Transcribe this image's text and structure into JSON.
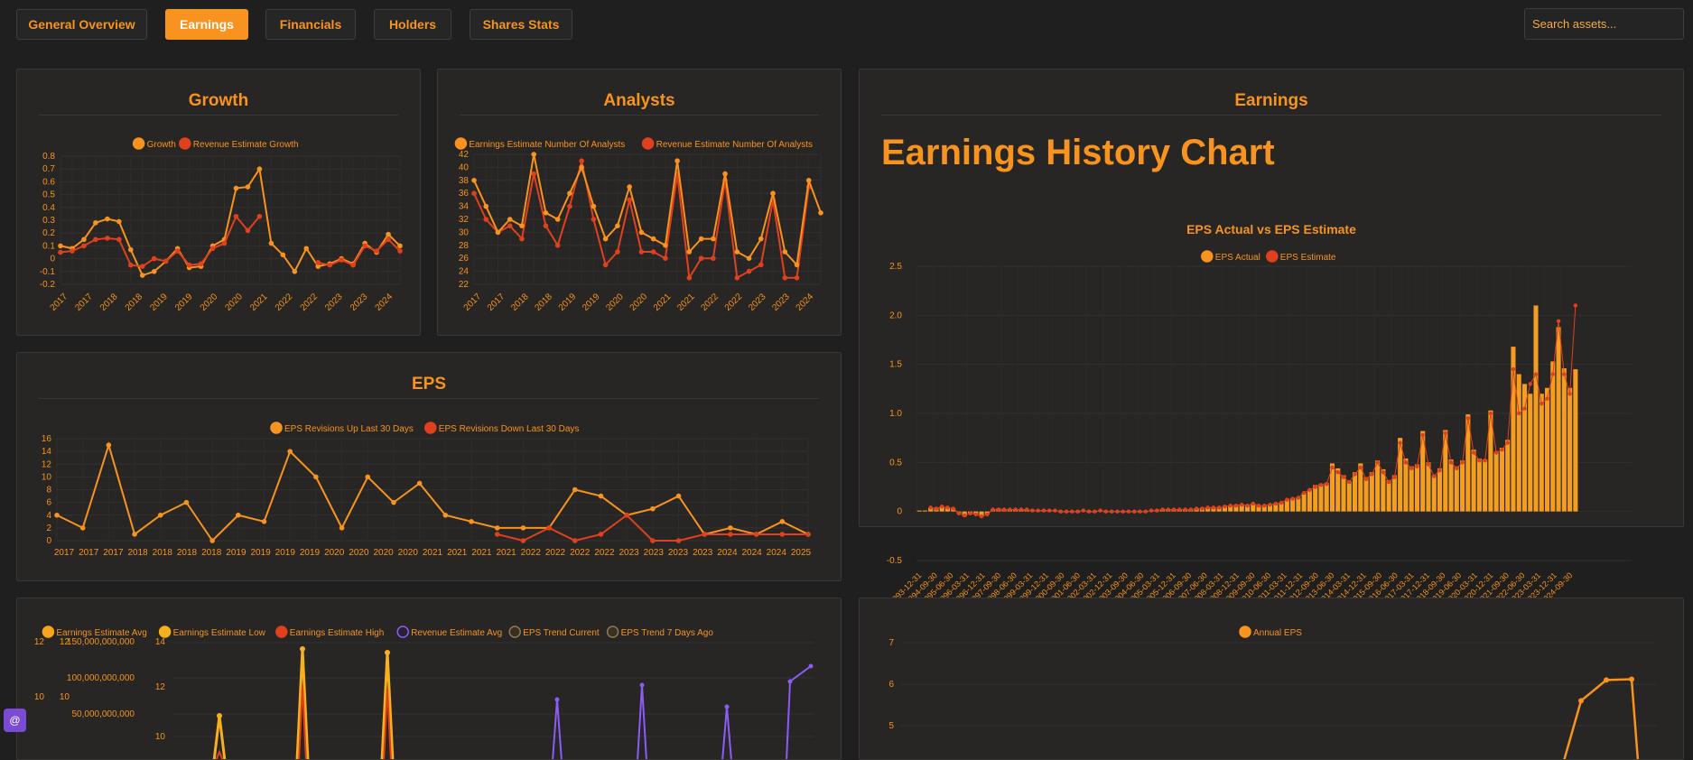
{
  "nav": {
    "tabs": [
      {
        "label": "General Overview",
        "active": false
      },
      {
        "label": "Earnings",
        "active": true
      },
      {
        "label": "Financials",
        "active": false
      },
      {
        "label": "Holders",
        "active": false
      },
      {
        "label": "Shares Stats",
        "active": false
      }
    ],
    "search_placeholder": "Search assets..."
  },
  "colors": {
    "orange": "#f7931e",
    "red": "#e0401e",
    "purple": "#8b5cf6",
    "trend": "#6b5a3a"
  },
  "growth": {
    "title": "Growth",
    "chart_data": {
      "type": "line",
      "legend": [
        "Growth",
        "Revenue Estimate Growth"
      ],
      "x_labels": [
        "2017",
        "2017",
        "2018",
        "2018",
        "2019",
        "2019",
        "2020",
        "2020",
        "2021",
        "2022",
        "2022",
        "2023",
        "2023",
        "2024"
      ],
      "y_ticks": [
        "0.8",
        "0.7",
        "0.6",
        "0.5",
        "0.4",
        "0.3",
        "0.2",
        "0.1",
        "0",
        "-0.1",
        "-0.2"
      ],
      "ylim": [
        -0.2,
        0.8
      ],
      "series": [
        {
          "name": "Growth",
          "values": [
            0.1,
            0.08,
            0.15,
            0.28,
            0.31,
            0.29,
            0.07,
            -0.13,
            -0.1,
            -0.02,
            0.08,
            -0.07,
            -0.06,
            0.1,
            0.15,
            0.55,
            0.56,
            0.7,
            0.12,
            0.03,
            -0.1,
            0.08,
            -0.06,
            -0.04,
            0.0,
            -0.04,
            0.12,
            0.05,
            0.19,
            0.1
          ]
        },
        {
          "name": "Revenue Estimate Growth",
          "values": [
            0.05,
            0.06,
            0.1,
            0.15,
            0.16,
            0.15,
            -0.05,
            -0.06,
            0.0,
            -0.02,
            0.06,
            -0.05,
            -0.04,
            0.08,
            0.12,
            0.33,
            0.22,
            0.33,
            null,
            null,
            null,
            null,
            -0.03,
            -0.05,
            -0.01,
            -0.05,
            0.1,
            0.06,
            0.15,
            0.06
          ]
        }
      ]
    }
  },
  "analysts": {
    "title": "Analysts",
    "chart_data": {
      "type": "line",
      "legend": [
        "Earnings Estimate Number Of Analysts",
        "Revenue Estimate Number Of Analysts"
      ],
      "x_labels": [
        "2017",
        "2017",
        "2018",
        "2018",
        "2019",
        "2019",
        "2020",
        "2020",
        "2021",
        "2021",
        "2022",
        "2022",
        "2023",
        "2023",
        "2024"
      ],
      "y_ticks": [
        "42",
        "40",
        "38",
        "36",
        "34",
        "32",
        "30",
        "28",
        "26",
        "24",
        "22"
      ],
      "ylim": [
        22,
        42
      ],
      "series": [
        {
          "name": "Earnings Estimate Number Of Analysts",
          "values": [
            38,
            34,
            30,
            32,
            31,
            42,
            33,
            32,
            36,
            40,
            34,
            29,
            31,
            37,
            30,
            29,
            28,
            41,
            27,
            29,
            29,
            39,
            27,
            26,
            29,
            36,
            27,
            25,
            38,
            33
          ]
        },
        {
          "name": "Revenue Estimate Number Of Analysts",
          "values": [
            36,
            32,
            30,
            31,
            29,
            39,
            31,
            28,
            34,
            41,
            32,
            25,
            27,
            35,
            27,
            27,
            26,
            39,
            23,
            26,
            26,
            38,
            23,
            24,
            25,
            35,
            23,
            23,
            37,
            null
          ]
        }
      ]
    }
  },
  "eps": {
    "title": "EPS",
    "chart_data": {
      "type": "line",
      "legend": [
        "EPS Revisions Up Last 30 Days",
        "EPS Revisions Down Last 30 Days"
      ],
      "x_labels": [
        "2017",
        "2017",
        "2017",
        "2018",
        "2018",
        "2018",
        "2018",
        "2019",
        "2019",
        "2019",
        "2019",
        "2020",
        "2020",
        "2020",
        "2020",
        "2021",
        "2021",
        "2021",
        "2021",
        "2022",
        "2022",
        "2022",
        "2022",
        "2023",
        "2023",
        "2023",
        "2023",
        "2024",
        "2024",
        "2024",
        "2025"
      ],
      "y_ticks": [
        "16",
        "14",
        "12",
        "10",
        "8",
        "6",
        "4",
        "2",
        "0"
      ],
      "ylim": [
        0,
        16
      ],
      "series": [
        {
          "name": "EPS Revisions Up Last 30 Days",
          "values": [
            4,
            2,
            15,
            1,
            4,
            6,
            0,
            4,
            3,
            14,
            10,
            2,
            10,
            6,
            9,
            4,
            3,
            2,
            2,
            2,
            8,
            7,
            4,
            5,
            7,
            1,
            2,
            1,
            3,
            1
          ]
        },
        {
          "name": "EPS Revisions Down Last 30 Days",
          "values": [
            null,
            null,
            null,
            null,
            null,
            null,
            null,
            null,
            null,
            null,
            null,
            null,
            null,
            null,
            null,
            null,
            null,
            1,
            0,
            2,
            0,
            1,
            4,
            0,
            0,
            1,
            1,
            1,
            1,
            1
          ]
        }
      ]
    }
  },
  "earnings": {
    "title": "Earnings",
    "heading": "Earnings History Chart",
    "chart_data": {
      "type": "bar",
      "title": "EPS Actual vs EPS Estimate",
      "legend": [
        "EPS Actual",
        "EPS Estimate"
      ],
      "y_ticks": [
        "2.5",
        "2.0",
        "1.5",
        "1.0",
        "0.5",
        "0",
        "-0.5"
      ],
      "ylim": [
        -0.5,
        2.5
      ],
      "x_labels": [
        "1993-12-31",
        "1994-09-30",
        "1995-06-30",
        "1996-03-31",
        "1996-12-31",
        "1997-09-30",
        "1998-06-30",
        "1999-03-31",
        "1999-12-31",
        "2000-09-30",
        "2001-06-30",
        "2002-03-31",
        "2002-12-31",
        "2003-09-30",
        "2004-06-30",
        "2005-03-31",
        "2005-12-31",
        "2006-09-30",
        "2007-06-30",
        "2008-03-31",
        "2008-12-31",
        "2009-09-30",
        "2010-06-30",
        "2011-03-31",
        "2011-12-31",
        "2012-09-30",
        "2013-06-30",
        "2014-03-31",
        "2014-12-31",
        "2015-09-30",
        "2016-06-30",
        "2017-03-31",
        "2017-12-31",
        "2018-09-30",
        "2019-06-30",
        "2020-03-31",
        "2020-12-31",
        "2021-09-30",
        "2022-06-30",
        "2023-03-31",
        "2023-12-31",
        "2024-09-30"
      ],
      "actual": [
        0.01,
        0.01,
        0.04,
        0.04,
        0.05,
        0.04,
        0.03,
        -0.02,
        -0.05,
        -0.02,
        -0.03,
        -0.05,
        -0.03,
        0.02,
        0.03,
        0.02,
        0.02,
        0.02,
        0.02,
        0.02,
        0.01,
        0.01,
        0.01,
        0.01,
        0.01,
        0,
        0,
        0,
        0,
        0.01,
        0,
        0,
        0.01,
        0,
        0,
        0,
        0,
        0,
        0,
        0,
        0,
        0.01,
        0.01,
        0.02,
        0.02,
        0.02,
        0.02,
        0.02,
        0.02,
        0.03,
        0.03,
        0.04,
        0.04,
        0.04,
        0.05,
        0.06,
        0.06,
        0.07,
        0.06,
        0.08,
        0.06,
        0.06,
        0.07,
        0.08,
        0.09,
        0.12,
        0.13,
        0.14,
        0.19,
        0.22,
        0.27,
        0.28,
        0.29,
        0.49,
        0.44,
        0.37,
        0.31,
        0.4,
        0.49,
        0.35,
        0.4,
        0.52,
        0.43,
        0.32,
        0.37,
        0.75,
        0.54,
        0.46,
        0.48,
        0.82,
        0.5,
        0.37,
        0.44,
        0.83,
        0.53,
        0.46,
        0.52,
        0.99,
        0.63,
        0.54,
        0.53,
        1.03,
        0.61,
        0.65,
        0.73,
        1.68,
        1.4,
        1.3,
        1.2,
        2.1,
        1.2,
        1.26,
        1.53,
        1.88,
        1.46,
        1.26,
        1.45
      ],
      "estimate": [
        null,
        null,
        0.04,
        0.03,
        0.05,
        0.04,
        0.03,
        -0.02,
        -0.04,
        -0.02,
        -0.03,
        -0.05,
        -0.03,
        0.02,
        0.02,
        0.02,
        0.02,
        0.02,
        0.02,
        0.02,
        0.01,
        0.01,
        0.01,
        0.01,
        0.01,
        0,
        0,
        0,
        0,
        0.01,
        0,
        0,
        0.01,
        0,
        0,
        0,
        0,
        0,
        0,
        0,
        0,
        0.01,
        0.01,
        0.02,
        0.02,
        0.02,
        0.02,
        0.02,
        0.02,
        0.03,
        0.03,
        0.04,
        0.04,
        0.04,
        0.05,
        0.06,
        0.06,
        0.07,
        0.06,
        0.08,
        0.06,
        0.06,
        0.07,
        0.08,
        0.09,
        0.12,
        0.13,
        0.14,
        0.19,
        0.22,
        0.25,
        0.27,
        0.28,
        0.45,
        0.4,
        0.35,
        0.3,
        0.38,
        0.45,
        0.33,
        0.38,
        0.5,
        0.4,
        0.3,
        0.35,
        0.7,
        0.5,
        0.44,
        0.46,
        0.78,
        0.48,
        0.36,
        0.42,
        0.8,
        0.5,
        0.44,
        0.5,
        0.95,
        0.6,
        0.52,
        0.52,
        1.0,
        0.6,
        0.63,
        0.7,
        1.45,
        1.0,
        1.05,
        1.3,
        1.4,
        1.1,
        1.15,
        1.4,
        1.94,
        1.4,
        1.2,
        2.1
      ]
    }
  },
  "estimates": {
    "chart_data": {
      "type": "line",
      "legend": [
        "Earnings Estimate Avg",
        "Earnings Estimate Low",
        "Earnings Estimate High",
        "Revenue Estimate Avg",
        "EPS Trend Current",
        "EPS Trend 7 Days Ago"
      ],
      "y_ticks_a": [
        "12",
        "10"
      ],
      "y_ticks_b": [
        "12",
        "10"
      ],
      "y_ticks_rev": [
        "150,000,000,000",
        "100,000,000,000",
        "50,000,000,000"
      ],
      "y_ticks_c": [
        "14",
        "12",
        "10"
      ]
    }
  },
  "annual": {
    "chart_data": {
      "type": "line",
      "legend": [
        "Annual EPS"
      ],
      "y_ticks": [
        "7",
        "6",
        "5"
      ],
      "ylim": [
        4.5,
        7.2
      ],
      "values": [
        5.6,
        6.1,
        6.12
      ]
    }
  },
  "badge": {
    "label": "@"
  }
}
